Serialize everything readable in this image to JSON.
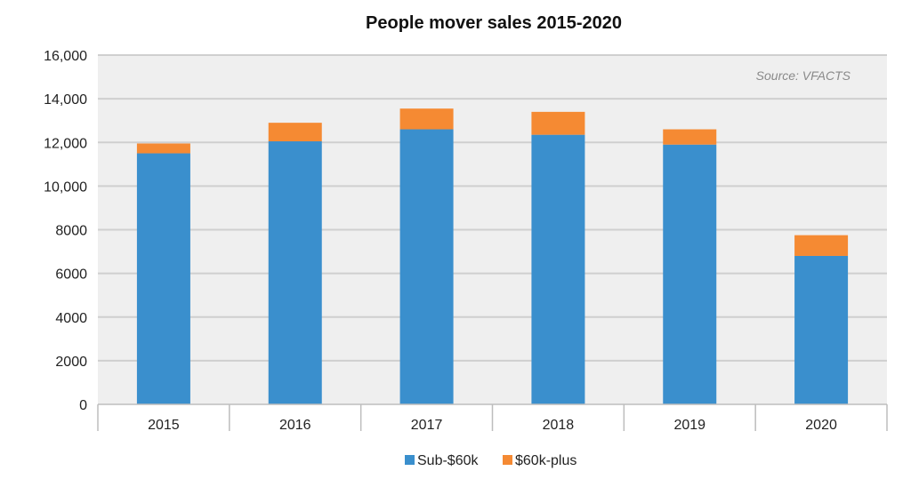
{
  "chart_data": {
    "type": "bar",
    "stacked": true,
    "title": "People mover sales 2015-2020",
    "source_note": "Source: VFACTS",
    "categories": [
      "2015",
      "2016",
      "2017",
      "2018",
      "2019",
      "2020"
    ],
    "series": [
      {
        "name": "Sub-$60k",
        "color": "#3a8fcd",
        "values": [
          11500,
          12050,
          12600,
          12350,
          11900,
          6800
        ]
      },
      {
        "name": "$60k-plus",
        "color": "#f58a33",
        "values": [
          450,
          850,
          950,
          1050,
          700,
          950
        ]
      }
    ],
    "ylim": [
      0,
      16000
    ],
    "yticks": [
      0,
      2000,
      4000,
      6000,
      8000,
      10000,
      12000,
      14000,
      16000
    ],
    "ytick_labels": [
      "0",
      "2000",
      "4000",
      "6000",
      "8000",
      "10,000",
      "12,000",
      "14,000",
      "16,000"
    ],
    "grid": true,
    "plot_background": "#efefef",
    "legend_position": "bottom"
  }
}
